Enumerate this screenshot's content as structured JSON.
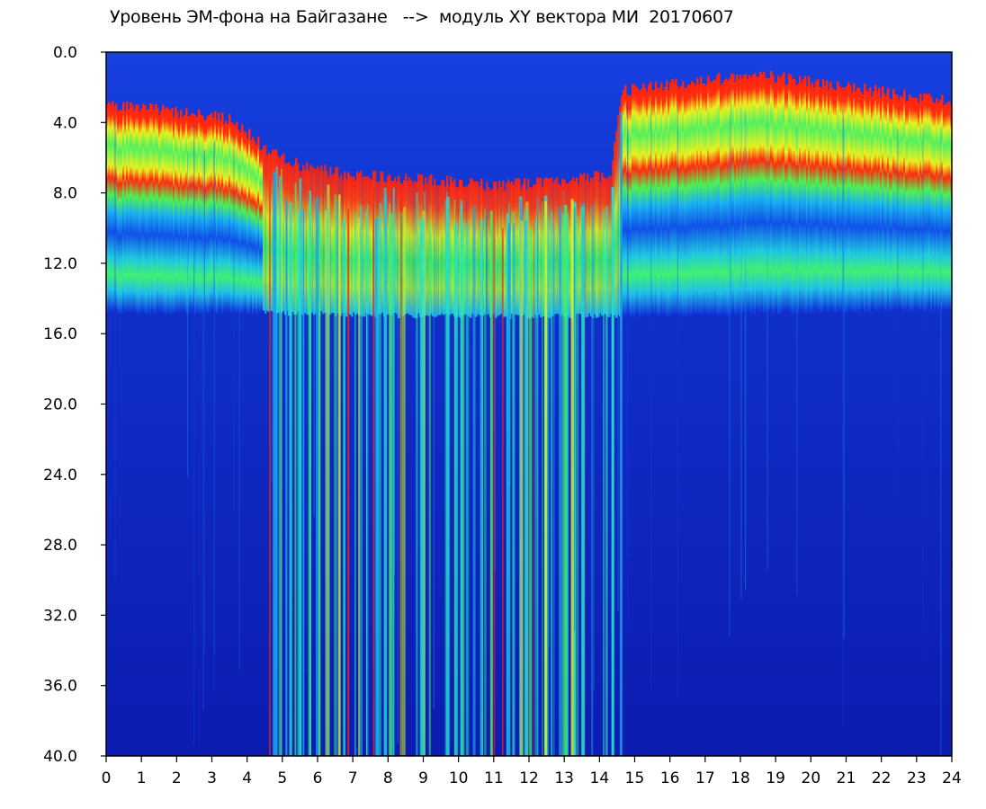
{
  "chart_data": {
    "type": "heatmap",
    "title": "Уровень ЭМ-фона на Байгазане   -->  модуль XY вектора МИ  20170607",
    "xlabel": "",
    "ylabel": "",
    "xlim": [
      0,
      24
    ],
    "ylim": [
      0.0,
      40.0
    ],
    "y_axis_inverted": true,
    "x_ticks": [
      "0",
      "1",
      "2",
      "3",
      "4",
      "5",
      "6",
      "7",
      "8",
      "9",
      "10",
      "11",
      "12",
      "13",
      "14",
      "15",
      "16",
      "17",
      "18",
      "19",
      "20",
      "21",
      "22",
      "23",
      "24"
    ],
    "y_ticks": [
      "0.0",
      "4.0",
      "8.0",
      "12.0",
      "16.0",
      "20.0",
      "24.0",
      "28.0",
      "32.0",
      "36.0",
      "40.0"
    ],
    "colormap": [
      "#0a16b8",
      "#1040e8",
      "#1aa0f0",
      "#20e0d0",
      "#40f070",
      "#d8f020",
      "#ff2010"
    ],
    "hot_band_top": [
      {
        "x": 0,
        "y": 3.0
      },
      {
        "x": 2,
        "y": 3.4
      },
      {
        "x": 3.5,
        "y": 3.8
      },
      {
        "x": 4.5,
        "y": 5.5
      },
      {
        "x": 5.5,
        "y": 6.5
      },
      {
        "x": 7,
        "y": 7.0
      },
      {
        "x": 9,
        "y": 7.2
      },
      {
        "x": 11,
        "y": 7.6
      },
      {
        "x": 12.5,
        "y": 7.4
      },
      {
        "x": 14.3,
        "y": 7.0
      },
      {
        "x": 14.6,
        "y": 2.2
      },
      {
        "x": 16,
        "y": 1.8
      },
      {
        "x": 18.5,
        "y": 1.3
      },
      {
        "x": 21,
        "y": 2.0
      },
      {
        "x": 24,
        "y": 2.8
      }
    ],
    "low_band_bottom": [
      {
        "x": 0,
        "y": 14.8
      },
      {
        "x": 4.5,
        "y": 14.8
      },
      {
        "x": 9,
        "y": 15.0
      },
      {
        "x": 14.6,
        "y": 15.0
      },
      {
        "x": 24,
        "y": 14.6
      }
    ],
    "active_interval": {
      "x_start": 4.4,
      "x_end": 14.6
    }
  }
}
